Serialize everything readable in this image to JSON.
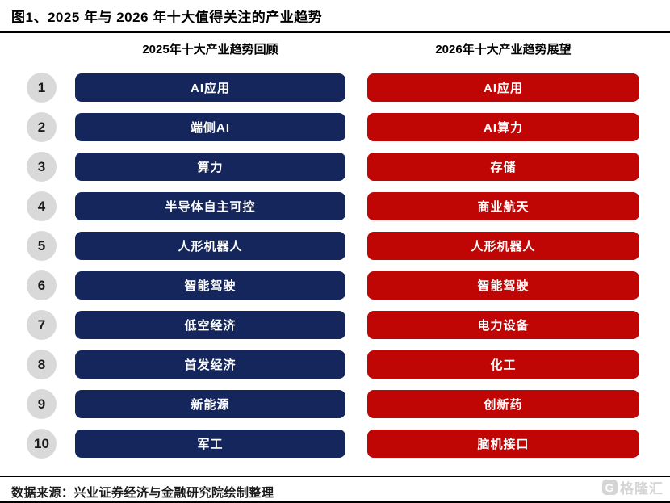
{
  "header": {
    "title": "图1、2025 年与 2026 年十大值得关注的产业趋势"
  },
  "columns": {
    "left": "2025年十大产业趋势回顾",
    "right": "2026年十大产业趋势展望"
  },
  "rows": [
    {
      "rank": "1",
      "left": "AI应用",
      "right": "AI应用"
    },
    {
      "rank": "2",
      "left": "端侧AI",
      "right": "AI算力"
    },
    {
      "rank": "3",
      "left": "算力",
      "right": "存储"
    },
    {
      "rank": "4",
      "left": "半导体自主可控",
      "right": "商业航天"
    },
    {
      "rank": "5",
      "left": "人形机器人",
      "right": "人形机器人"
    },
    {
      "rank": "6",
      "left": "智能驾驶",
      "right": "智能驾驶"
    },
    {
      "rank": "7",
      "left": "低空经济",
      "right": "电力设备"
    },
    {
      "rank": "8",
      "left": "首发经济",
      "right": "化工"
    },
    {
      "rank": "9",
      "left": "新能源",
      "right": "创新药"
    },
    {
      "rank": "10",
      "left": "军工",
      "right": "脑机接口"
    }
  ],
  "footer": {
    "source": "数据来源：兴业证券经济与金融研究院绘制整理",
    "watermark_text": "格隆汇",
    "watermark_icon_letter": "G"
  },
  "colors": {
    "left_bar": "#14265c",
    "right_bar": "#c00505",
    "rank_circle": "#d9d9d9",
    "rule": "#000000"
  }
}
